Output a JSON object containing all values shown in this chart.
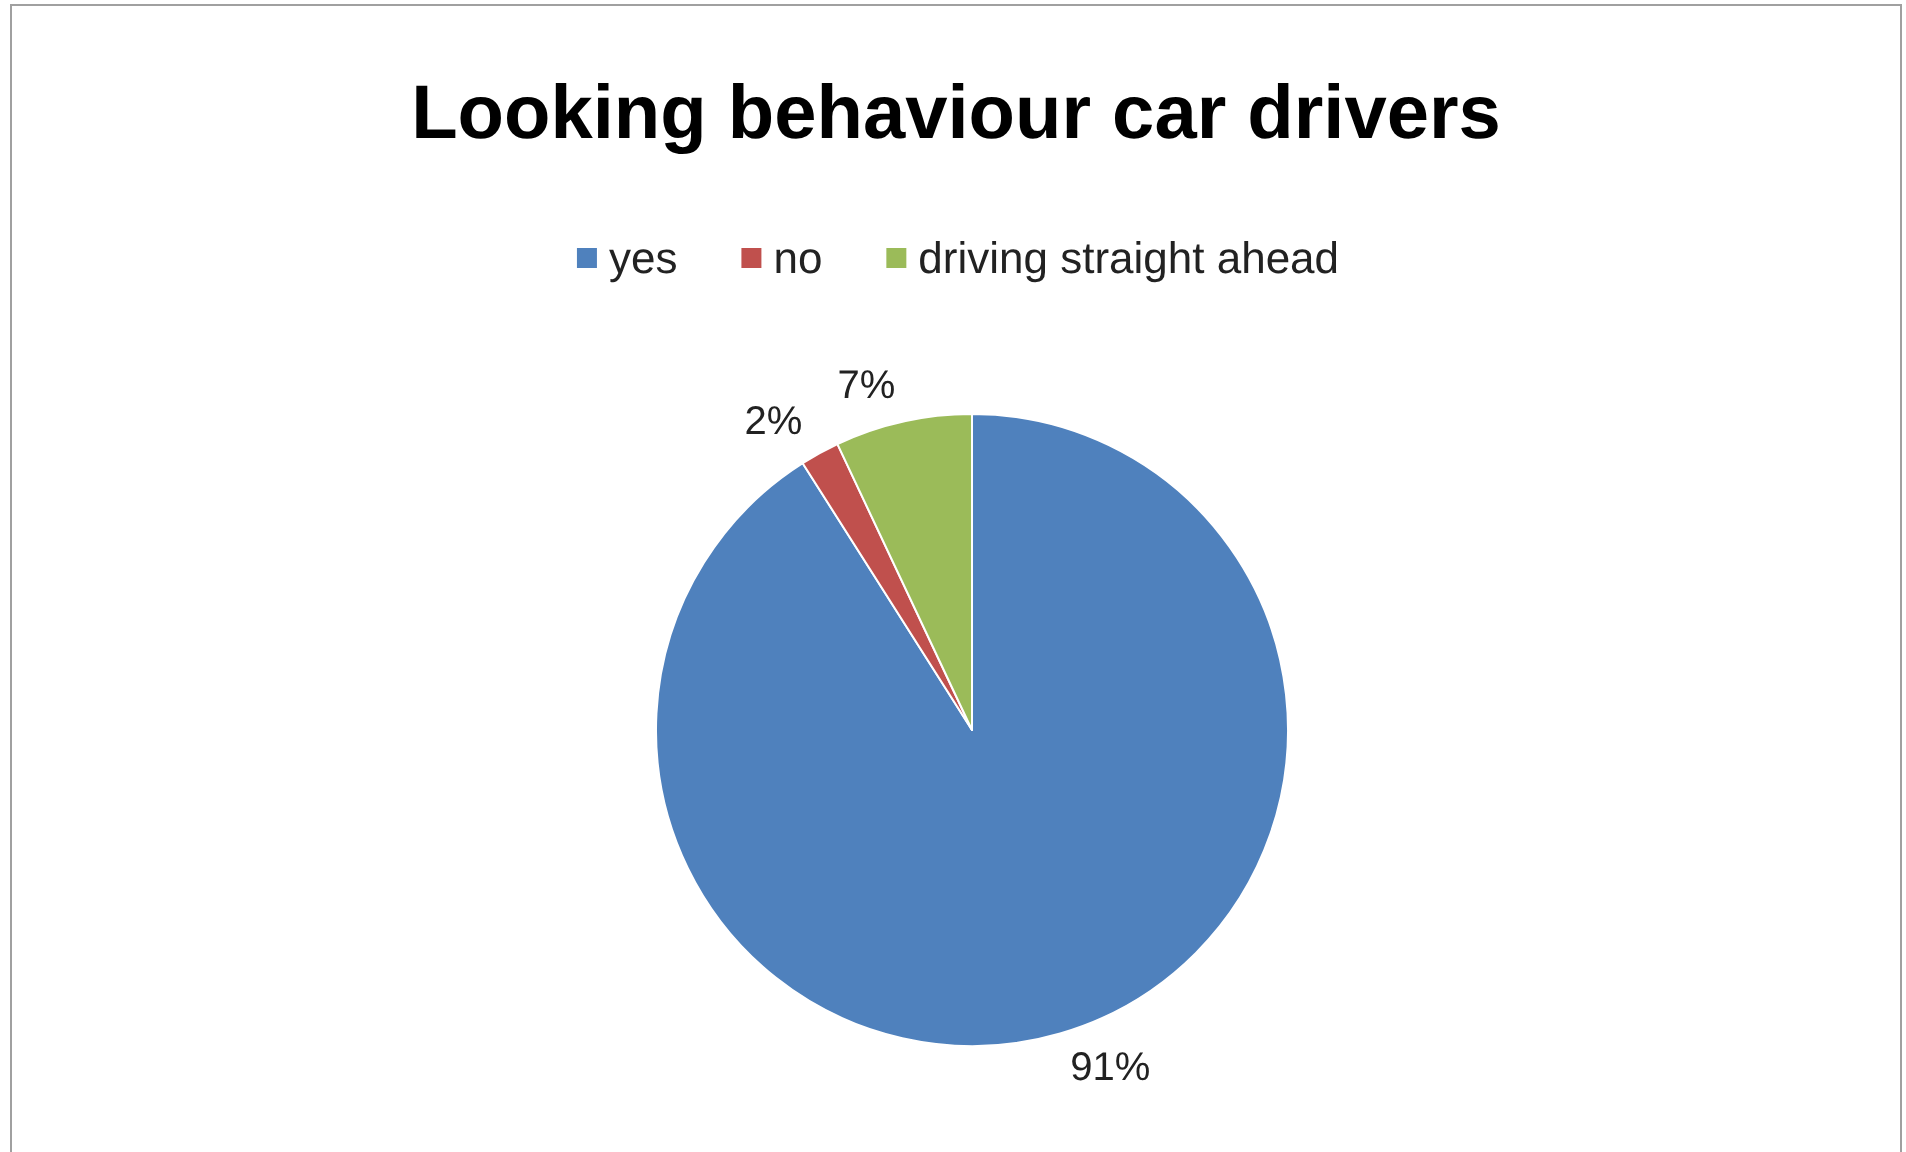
{
  "chart_data": {
    "type": "pie",
    "title": "Looking behaviour car drivers",
    "categories": [
      "yes",
      "no",
      "driving straight ahead"
    ],
    "values": [
      91,
      2,
      7
    ],
    "colors": [
      "#4f81bd",
      "#c0504d",
      "#9bbb59"
    ],
    "value_labels": [
      "91%",
      "2%",
      "7%"
    ],
    "legend": "top"
  }
}
